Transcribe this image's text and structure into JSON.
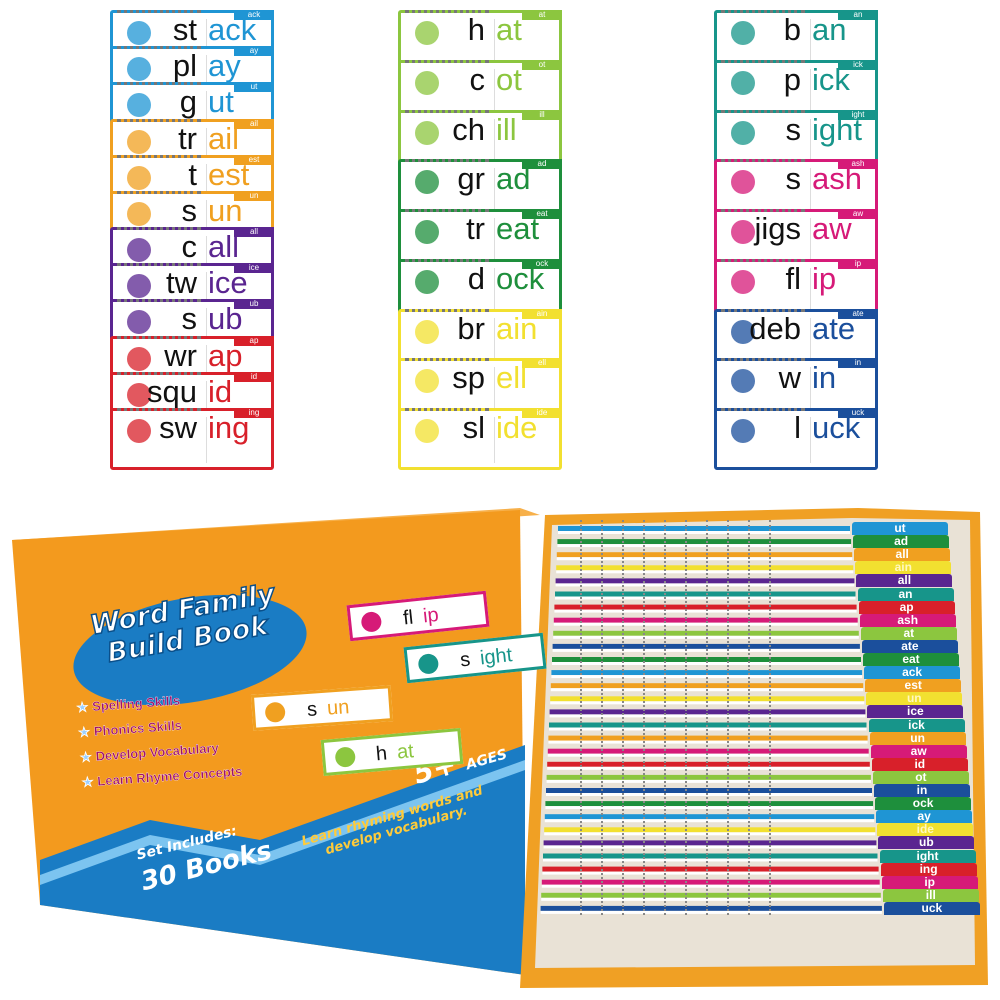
{
  "card_columns": [
    {
      "cards": [
        {
          "onset": "st",
          "rime": "ack",
          "color": "#1f95d4"
        },
        {
          "onset": "pl",
          "rime": "ay",
          "color": "#1f95d4"
        },
        {
          "onset": "g",
          "rime": "ut",
          "color": "#1f95d4"
        },
        {
          "onset": "tr",
          "rime": "ail",
          "color": "#f0a020"
        },
        {
          "onset": "t",
          "rime": "est",
          "color": "#f0a020"
        },
        {
          "onset": "s",
          "rime": "un",
          "color": "#f0a020"
        },
        {
          "onset": "c",
          "rime": "all",
          "color": "#5a2590"
        },
        {
          "onset": "tw",
          "rime": "ice",
          "color": "#5a2590"
        },
        {
          "onset": "s",
          "rime": "ub",
          "color": "#5a2590"
        },
        {
          "onset": "wr",
          "rime": "ap",
          "color": "#d8202a"
        },
        {
          "onset": "squ",
          "rime": "id",
          "color": "#d8202a"
        },
        {
          "onset": "sw",
          "rime": "ing",
          "color": "#d8202a"
        }
      ]
    },
    {
      "cards": [
        {
          "onset": "h",
          "rime": "at",
          "color": "#8cc63f"
        },
        {
          "onset": "c",
          "rime": "ot",
          "color": "#8cc63f"
        },
        {
          "onset": "ch",
          "rime": "ill",
          "color": "#8cc63f"
        },
        {
          "onset": "gr",
          "rime": "ad",
          "color": "#1e8f3c"
        },
        {
          "onset": "tr",
          "rime": "eat",
          "color": "#1e8f3c"
        },
        {
          "onset": "d",
          "rime": "ock",
          "color": "#1e8f3c"
        },
        {
          "onset": "br",
          "rime": "ain",
          "color": "#f2e030"
        },
        {
          "onset": "sp",
          "rime": "ell",
          "color": "#f2e030"
        },
        {
          "onset": "sl",
          "rime": "ide",
          "color": "#f2e030"
        }
      ]
    },
    {
      "cards": [
        {
          "onset": "b",
          "rime": "an",
          "color": "#17958a"
        },
        {
          "onset": "p",
          "rime": "ick",
          "color": "#17958a"
        },
        {
          "onset": "s",
          "rime": "ight",
          "color": "#17958a"
        },
        {
          "onset": "s",
          "rime": "ash",
          "color": "#d61a78"
        },
        {
          "onset": "jigs",
          "rime": "aw",
          "color": "#d61a78"
        },
        {
          "onset": "fl",
          "rime": "ip",
          "color": "#d61a78"
        },
        {
          "onset": "deb",
          "rime": "ate",
          "color": "#1b4f9c"
        },
        {
          "onset": "w",
          "rime": "in",
          "color": "#1b4f9c"
        },
        {
          "onset": "l",
          "rime": "uck",
          "color": "#1b4f9c"
        }
      ]
    }
  ],
  "box": {
    "title_line1": "Word Family",
    "title_line2": "Build Book",
    "bullets": [
      "Spelling Skills",
      "Phonics Skills",
      "Develop Vocabulary",
      "Learn Rhyme Concepts"
    ],
    "set_includes": "Set Includes:",
    "books": "30 Books",
    "ages": "5+",
    "ages_label": "AGES",
    "tagline_line1": "Learn rhyming words and",
    "tagline_line2": "develop vocabulary.",
    "mini_cards": [
      {
        "onset": "fl",
        "rime": "ip",
        "color": "#d61a78"
      },
      {
        "onset": "s",
        "rime": "ight",
        "color": "#17958a"
      },
      {
        "onset": "s",
        "rime": "un",
        "color": "#f0a020"
      },
      {
        "onset": "h",
        "rime": "at",
        "color": "#8cc63f"
      }
    ],
    "colors": {
      "orange": "#f39a1e",
      "orange_dark": "#d97a10",
      "blue": "#1a7cc4"
    }
  },
  "tray_tabs": [
    {
      "label": "ut",
      "color": "#1f95d4"
    },
    {
      "label": "ad",
      "color": "#1e8f3c"
    },
    {
      "label": "all",
      "color": "#f0a020"
    },
    {
      "label": "ain",
      "color": "#f2e030"
    },
    {
      "label": "all",
      "color": "#5a2590"
    },
    {
      "label": "an",
      "color": "#17958a"
    },
    {
      "label": "ap",
      "color": "#d8202a"
    },
    {
      "label": "ash",
      "color": "#d61a78"
    },
    {
      "label": "at",
      "color": "#8cc63f"
    },
    {
      "label": "ate",
      "color": "#1b4f9c"
    },
    {
      "label": "eat",
      "color": "#1e8f3c"
    },
    {
      "label": "ack",
      "color": "#1f95d4"
    },
    {
      "label": "est",
      "color": "#f0a020"
    },
    {
      "label": "un",
      "color": "#f2e030"
    },
    {
      "label": "ice",
      "color": "#5a2590"
    },
    {
      "label": "ick",
      "color": "#17958a"
    },
    {
      "label": "un",
      "color": "#f0a020"
    },
    {
      "label": "aw",
      "color": "#d61a78"
    },
    {
      "label": "id",
      "color": "#d8202a"
    },
    {
      "label": "ot",
      "color": "#8cc63f"
    },
    {
      "label": "in",
      "color": "#1b4f9c"
    },
    {
      "label": "ock",
      "color": "#1e8f3c"
    },
    {
      "label": "ay",
      "color": "#1f95d4"
    },
    {
      "label": "ide",
      "color": "#f2e030"
    },
    {
      "label": "ub",
      "color": "#5a2590"
    },
    {
      "label": "ight",
      "color": "#17958a"
    },
    {
      "label": "ing",
      "color": "#d8202a"
    },
    {
      "label": "ip",
      "color": "#d61a78"
    },
    {
      "label": "ill",
      "color": "#8cc63f"
    },
    {
      "label": "uck",
      "color": "#1b4f9c"
    }
  ]
}
